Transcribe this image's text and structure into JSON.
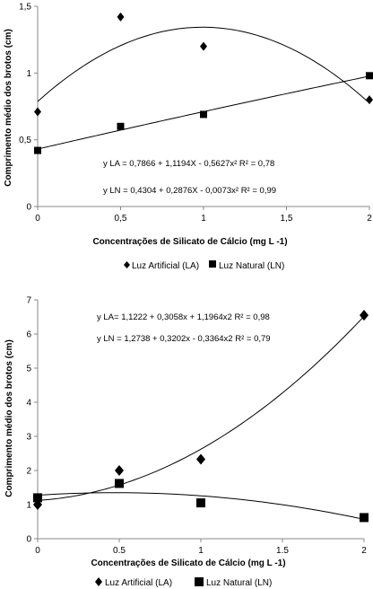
{
  "chart_data": [
    {
      "type": "scatter",
      "title": "",
      "xlabel": "Concentrações de Silicato de Cálcio (mg L -1)",
      "ylabel": "Comprimento médio dos brotos (cm)",
      "xlim": [
        0,
        2
      ],
      "ylim": [
        0,
        1.5
      ],
      "x_ticks": [
        "0",
        "0,5",
        "1",
        "1,5",
        "2"
      ],
      "y_ticks": [
        "0",
        "0,5",
        "1",
        "1,5"
      ],
      "grid": false,
      "legend_position": "bottom",
      "series": [
        {
          "name": "Luz Artificial (LA)",
          "marker": "diamond",
          "points": [
            [
              0,
              0.71
            ],
            [
              0.5,
              1.42
            ],
            [
              1,
              1.2
            ],
            [
              2,
              0.8
            ]
          ],
          "fit": {
            "a": 0.7866,
            "b": 1.1194,
            "c": -0.5627
          },
          "equation": "y LA = 0,7866 + 1,1194X - 0,5627x² R² = 0,78"
        },
        {
          "name": "Luz Natural (LN)",
          "marker": "square",
          "points": [
            [
              0,
              0.42
            ],
            [
              0.5,
              0.6
            ],
            [
              1,
              0.69
            ],
            [
              2,
              0.98
            ]
          ],
          "fit": {
            "a": 0.4304,
            "b": 0.2876,
            "c": -0.0073
          },
          "equation": "y LN = 0,4304 + 0,2876X - 0,0073x² R² = 0,99"
        }
      ]
    },
    {
      "type": "scatter",
      "title": "",
      "xlabel": "Concentrações de Silicato de Cálcio (mg L -1)",
      "ylabel": "Comprimento médio dos brotos (cm)",
      "xlim": [
        0,
        2
      ],
      "ylim": [
        0,
        7
      ],
      "x_ticks": [
        "0",
        "0.5",
        "1",
        "1.5",
        "2"
      ],
      "y_ticks": [
        "0",
        "1",
        "2",
        "3",
        "4",
        "5",
        "6",
        "7"
      ],
      "grid": false,
      "legend_position": "bottom",
      "series": [
        {
          "name": "Luz Artificial (LA)",
          "marker": "diamond",
          "points": [
            [
              0,
              1.0
            ],
            [
              0.5,
              2.0
            ],
            [
              1,
              2.33
            ],
            [
              2,
              6.55
            ]
          ],
          "fit": {
            "a": 1.1222,
            "b": 0.3058,
            "c": 1.1964
          },
          "equation": "y  LA= 1,1222 + 0,3058x + 1,1964x2 R² = 0,98"
        },
        {
          "name": "Luz Natural (LN)",
          "marker": "square",
          "points": [
            [
              0,
              1.2
            ],
            [
              0.5,
              1.62
            ],
            [
              1,
              1.05
            ],
            [
              2,
              0.62
            ]
          ],
          "fit": {
            "a": 1.2738,
            "b": 0.3202,
            "c": -0.3364
          },
          "equation": "y LN = 1,2738 + 0,3202x - 0,3364x2 R² = 0,79"
        }
      ]
    }
  ]
}
